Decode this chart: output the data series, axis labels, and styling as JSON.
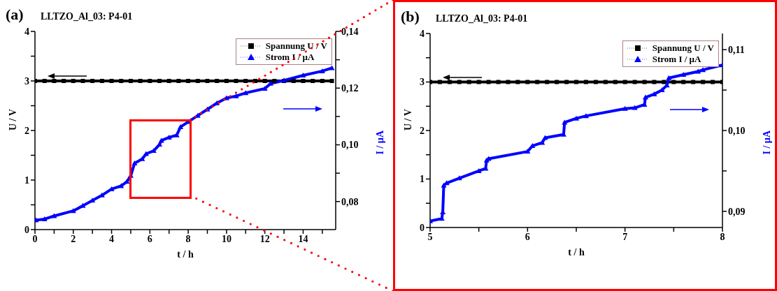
{
  "chart_data": [
    {
      "type": "line",
      "title": "LLTZO_Al_03: P4-01",
      "annotations": [
        "(a)"
      ],
      "xlabel": "t / h",
      "ylabel": "U / V",
      "y2label": "I / µA",
      "xlim": [
        0,
        15.7
      ],
      "xticks": [
        0,
        {
          "value": 1,
          "label": null
        },
        2,
        {
          "value": 3,
          "label": null
        },
        4,
        {
          "value": 5,
          "label": null
        },
        6,
        {
          "value": 7,
          "label": null
        },
        8,
        {
          "value": 9,
          "label": null
        },
        10,
        {
          "value": 11,
          "label": null
        },
        12,
        {
          "value": 13,
          "label": null
        },
        14,
        {
          "value": 15,
          "label": null
        }
      ],
      "ylim": [
        0,
        4
      ],
      "yticks": [
        0,
        {
          "value": 0.5,
          "label": null
        },
        1,
        {
          "value": 1.5,
          "label": null
        },
        2,
        {
          "value": 2.5,
          "label": null
        },
        3,
        {
          "value": 3.5,
          "label": null
        },
        4
      ],
      "y2lim": [
        0.0701,
        0.14
      ],
      "y2ticks": [
        {
          "value": 0.08,
          "label": "0,08"
        },
        {
          "value": 0.09,
          "label": null
        },
        {
          "value": 0.1,
          "label": "0,10"
        },
        {
          "value": 0.11,
          "label": null
        },
        {
          "value": 0.12,
          "label": "0,12"
        },
        {
          "value": 0.13,
          "label": null
        },
        {
          "value": 0.14,
          "label": "0,14"
        }
      ],
      "legend": "top right",
      "series": [
        {
          "name": "Spannung U / V",
          "color": "#000000",
          "marker": "square",
          "x": [
            0,
            0.5,
            1,
            1.5,
            2,
            2.5,
            3,
            3.5,
            4,
            4.5,
            5,
            5.5,
            6,
            6.5,
            7,
            7.5,
            8,
            8.5,
            9,
            9.5,
            10,
            10.5,
            11,
            11.5,
            12,
            12.5,
            13,
            13.5,
            14,
            14.5,
            15,
            15.5
          ],
          "values": [
            3,
            3,
            3,
            3,
            3,
            3,
            3,
            3,
            3,
            3,
            3,
            3,
            3,
            3,
            3,
            3,
            3,
            3,
            3,
            3,
            3,
            3,
            3,
            3,
            3,
            3,
            3,
            3,
            3,
            3,
            3,
            3
          ]
        },
        {
          "name": "Strom I / µA",
          "color": "#0000ff",
          "marker": "triangle",
          "axis": "y2",
          "x": [
            0.05,
            0.5,
            1,
            2,
            2.5,
            3,
            3.5,
            4,
            4.5,
            4.8,
            5,
            5.2,
            5.6,
            5.8,
            6.2,
            6.5,
            6.6,
            7,
            7.4,
            7.6,
            8,
            8.5,
            9,
            9.5,
            10,
            10.5,
            11,
            12,
            12.3,
            13,
            14,
            15,
            15.5
          ],
          "values": [
            0.0734,
            0.0738,
            0.0749,
            0.0767,
            0.0785,
            0.0804,
            0.0822,
            0.0844,
            0.0855,
            0.087,
            0.0891,
            0.0935,
            0.095,
            0.0968,
            0.0979,
            0.1001,
            0.1015,
            0.1026,
            0.1034,
            0.1063,
            0.1081,
            0.1103,
            0.1125,
            0.1147,
            0.1165,
            0.1172,
            0.1183,
            0.1198,
            0.1216,
            0.1227,
            0.1245,
            0.126,
            0.1271
          ]
        }
      ]
    },
    {
      "type": "line",
      "title": "LLTZO_Al_03: P4-01",
      "annotations": [
        "(b)"
      ],
      "xlabel": "t / h",
      "ylabel": "U / V",
      "y2label": "I / µA",
      "xlim": [
        5,
        8
      ],
      "xticks": [
        5,
        {
          "value": 5.5,
          "label": null
        },
        6,
        {
          "value": 6.5,
          "label": null
        },
        7,
        {
          "value": 7.5,
          "label": null
        },
        8
      ],
      "ylim": [
        0,
        4
      ],
      "yticks": [
        0,
        {
          "value": 0.5,
          "label": null
        },
        1,
        {
          "value": 1.5,
          "label": null
        },
        2,
        {
          "value": 2.5,
          "label": null
        },
        3,
        {
          "value": 3.5,
          "label": null
        },
        4
      ],
      "y2lim": [
        0.088,
        0.112
      ],
      "y2ticks": [
        {
          "value": 0.09,
          "label": "0,09"
        },
        {
          "value": 0.095,
          "label": null
        },
        {
          "value": 0.1,
          "label": "0,10"
        },
        {
          "value": 0.105,
          "label": null
        },
        {
          "value": 0.11,
          "label": "0,11"
        }
      ],
      "legend": "top right",
      "series": [
        {
          "name": "Spannung U / V",
          "color": "#000000",
          "marker": "square",
          "x": [
            5,
            5.1,
            5.2,
            5.3,
            5.4,
            5.5,
            5.6,
            5.7,
            5.8,
            5.9,
            6,
            6.1,
            6.2,
            6.3,
            6.4,
            6.5,
            6.6,
            6.7,
            6.8,
            6.9,
            7,
            7.1,
            7.2,
            7.3,
            7.4,
            7.5,
            7.6,
            7.7,
            7.8,
            7.9,
            8
          ],
          "values": [
            3,
            3,
            3,
            3,
            3,
            3,
            3,
            3,
            3,
            3,
            3,
            3,
            3,
            3,
            3,
            3,
            3,
            3,
            3,
            3,
            3,
            3,
            3,
            3,
            3,
            3,
            3,
            3,
            3,
            3,
            3
          ]
        },
        {
          "name": "Strom I / µA",
          "color": "#0000ff",
          "marker": "triangle",
          "axis": "y2",
          "x": [
            5,
            5.12,
            5.13,
            5.14,
            5.17,
            5.3,
            5.5,
            5.57,
            5.58,
            5.6,
            6,
            6.05,
            6.15,
            6.18,
            6.37,
            6.38,
            6.5,
            6.6,
            7,
            7.1,
            7.2,
            7.21,
            7.3,
            7.38,
            7.43,
            7.45,
            7.6,
            7.75,
            7.8,
            8
          ],
          "values": [
            0.0888,
            0.0891,
            0.0899,
            0.0932,
            0.0935,
            0.0941,
            0.095,
            0.0953,
            0.0963,
            0.0965,
            0.0974,
            0.0981,
            0.0985,
            0.0991,
            0.0995,
            0.101,
            0.1015,
            0.1018,
            0.1027,
            0.1028,
            0.1032,
            0.1041,
            0.1045,
            0.105,
            0.1056,
            0.1065,
            0.1069,
            0.1073,
            0.1075,
            0.1081
          ]
        }
      ]
    }
  ]
}
